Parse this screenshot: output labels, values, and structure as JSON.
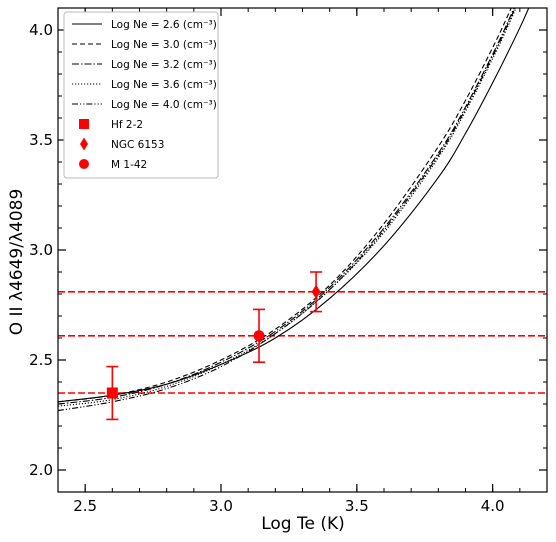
{
  "chart_data": {
    "type": "line",
    "title": "",
    "xlabel": "Log Te (K)",
    "ylabel": "O II λ4649/λ4089",
    "xlim": [
      2.4,
      4.2
    ],
    "ylim": [
      1.9,
      4.1
    ],
    "xticks": [
      2.5,
      3.0,
      3.5,
      4.0
    ],
    "xtick_labels": [
      "2.5",
      "3.0",
      "3.5",
      "4.0"
    ],
    "yticks": [
      2.0,
      2.5,
      3.0,
      3.5,
      4.0
    ],
    "ytick_labels": [
      "2.0",
      "2.5",
      "3.0",
      "3.5",
      "4.0"
    ],
    "legend_position": "top-left",
    "series": [
      {
        "name": "Log Ne = 2.6 (cm⁻³)",
        "style": "solid",
        "x": [
          2.4,
          2.6,
          2.8,
          3.0,
          3.2,
          3.4,
          3.6,
          3.8,
          3.9,
          4.0,
          4.1,
          4.15
        ],
        "y": [
          2.31,
          2.34,
          2.39,
          2.48,
          2.6,
          2.78,
          3.02,
          3.33,
          3.53,
          3.76,
          4.01,
          4.15
        ]
      },
      {
        "name": "Log Ne = 3.0 (cm⁻³)",
        "style": "dashed",
        "x": [
          2.4,
          2.6,
          2.8,
          3.0,
          3.2,
          3.4,
          3.6,
          3.8,
          3.9,
          4.0,
          4.05,
          4.1
        ],
        "y": [
          2.31,
          2.34,
          2.4,
          2.5,
          2.64,
          2.84,
          3.12,
          3.47,
          3.68,
          3.92,
          4.05,
          4.19
        ]
      },
      {
        "name": "Log Ne = 3.2 (cm⁻³)",
        "style": "dashdot",
        "x": [
          2.4,
          2.6,
          2.8,
          3.0,
          3.2,
          3.4,
          3.6,
          3.8,
          3.9,
          4.0,
          4.05,
          4.1
        ],
        "y": [
          2.3,
          2.33,
          2.39,
          2.49,
          2.63,
          2.83,
          3.1,
          3.44,
          3.65,
          3.89,
          4.02,
          4.16
        ]
      },
      {
        "name": "Log Ne = 3.6 (cm⁻³)",
        "style": "dotted",
        "x": [
          2.4,
          2.6,
          2.8,
          3.0,
          3.2,
          3.4,
          3.6,
          3.8,
          3.9,
          4.0,
          4.05,
          4.1
        ],
        "y": [
          2.29,
          2.32,
          2.38,
          2.48,
          2.62,
          2.82,
          3.08,
          3.42,
          3.63,
          3.87,
          4.0,
          4.14
        ]
      },
      {
        "name": "Log Ne = 4.0 (cm⁻³)",
        "style": "dashdotdot",
        "x": [
          2.4,
          2.6,
          2.8,
          3.0,
          3.2,
          3.4,
          3.6,
          3.8,
          3.9,
          4.0,
          4.05,
          4.1
        ],
        "y": [
          2.27,
          2.31,
          2.37,
          2.47,
          2.62,
          2.82,
          3.09,
          3.43,
          3.64,
          3.88,
          4.01,
          4.15
        ]
      }
    ],
    "points": [
      {
        "name": "Hf 2-2",
        "marker": "square",
        "x": 2.6,
        "y": 2.35,
        "yerr": 0.12,
        "color": "#ff0000"
      },
      {
        "name": "NGC 6153",
        "marker": "diamond",
        "x": 3.35,
        "y": 2.81,
        "yerr": 0.09,
        "color": "#ff0000"
      },
      {
        "name": "M 1-42",
        "marker": "circle",
        "x": 3.14,
        "y": 2.61,
        "yerr": 0.12,
        "color": "#ff0000"
      }
    ],
    "hlines": [
      {
        "y": 2.81,
        "color": "#ff0000",
        "style": "dashed"
      },
      {
        "y": 2.61,
        "color": "#ff0000",
        "style": "dashed"
      },
      {
        "y": 2.35,
        "color": "#ff0000",
        "style": "dashed"
      }
    ]
  }
}
